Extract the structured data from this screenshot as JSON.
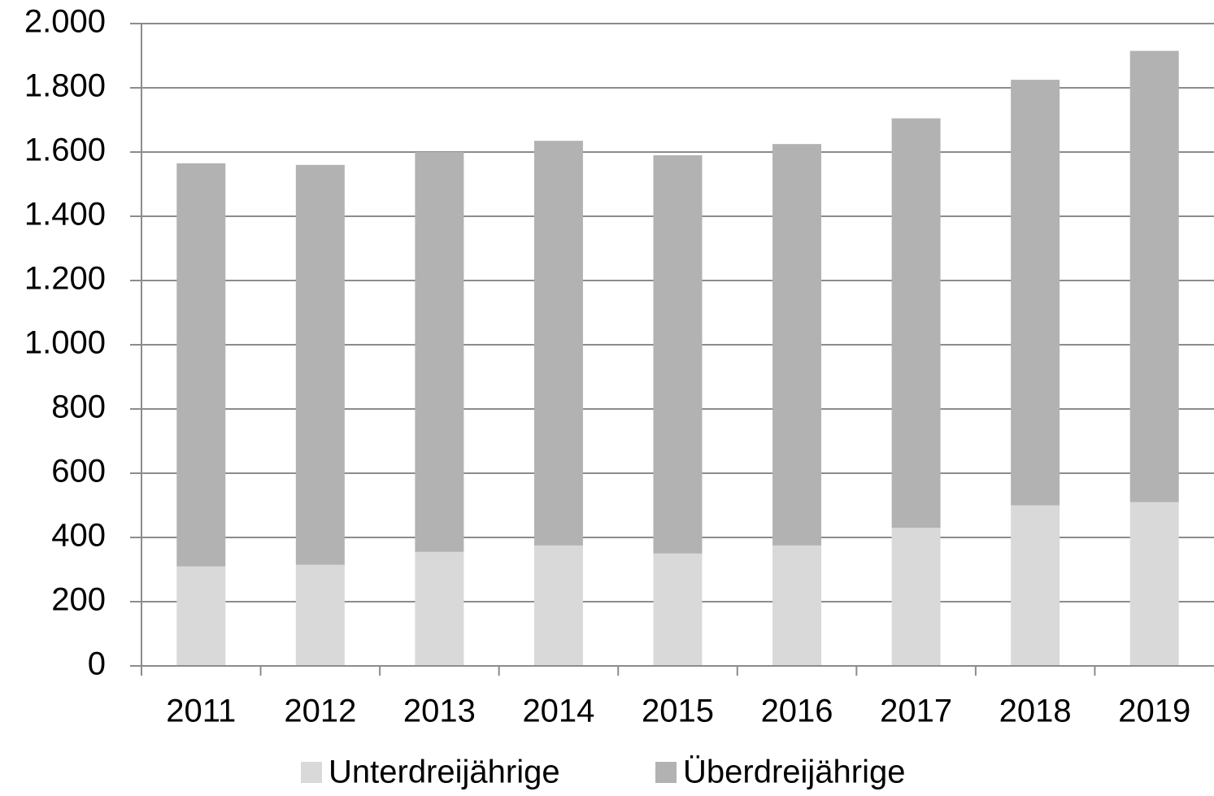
{
  "chart_data": {
    "type": "stacked_bar",
    "categories": [
      "2011",
      "2012",
      "2013",
      "2014",
      "2015",
      "2016",
      "2017",
      "2018",
      "2019"
    ],
    "series": [
      {
        "name": "Unterdreijährige",
        "color": "#d9d9d9",
        "values": [
          310,
          315,
          355,
          375,
          350,
          375,
          430,
          500,
          510
        ]
      },
      {
        "name": "Überdreijährige",
        "color": "#b2b2b2",
        "values": [
          1255,
          1245,
          1245,
          1260,
          1240,
          1250,
          1275,
          1325,
          1405
        ]
      }
    ],
    "ylim": [
      0,
      2000
    ],
    "yticks": [
      0,
      200,
      400,
      600,
      800,
      {
        "value": 1000,
        "label": "1.000"
      },
      {
        "value": 1200,
        "label": "1.200"
      },
      {
        "value": 1400,
        "label": "1.400"
      },
      {
        "value": 1600,
        "label": "1.600"
      },
      {
        "value": 1800,
        "label": "1.800"
      },
      {
        "value": 2000,
        "label": "2.000"
      }
    ],
    "grid": true,
    "legend": "bottom"
  }
}
